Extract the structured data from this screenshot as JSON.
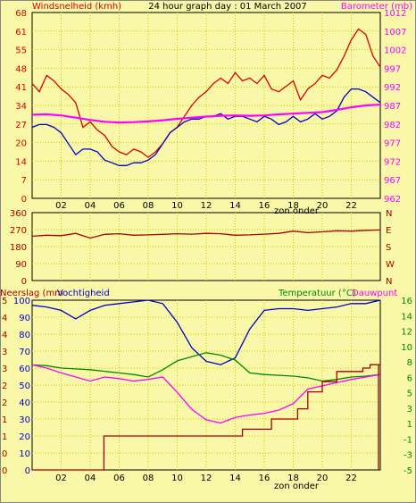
{
  "header": {
    "title": "24 hour graph day : 01 March 2007",
    "wind_label": "Windsnelheid (kmh)",
    "baro_label": "Barometer (mb)"
  },
  "colors": {
    "background": "#f8f8a8",
    "wind": "#dd0000",
    "gust": "#0000cc",
    "barometer": "#ff00ff",
    "humidity": "#0000cc",
    "temperature": "#008800",
    "dewpoint": "#ff00ff",
    "rain": "#aa0000",
    "direction": "#aa0000",
    "grid": "#cccc00"
  },
  "chart_data": [
    {
      "type": "line",
      "title": "24 hour graph day : 01 March 2007",
      "ylabel_left": "Windsnelheid (kmh)",
      "ylabel_right": "Barometer (mb)",
      "x_ticks": [
        "02",
        "04",
        "06",
        "08",
        "10",
        "12",
        "14",
        "16",
        "18",
        "20",
        "22"
      ],
      "x_annotation": "zon onder",
      "y_left_ticks": [
        "0",
        "7",
        "14",
        "20",
        "27",
        "34",
        "41",
        "48",
        "55",
        "61",
        "68"
      ],
      "y_right_ticks": [
        "962",
        "967",
        "972",
        "977",
        "982",
        "987",
        "992",
        "997",
        "1002",
        "1007",
        "1012"
      ],
      "ylim_left": [
        0,
        68
      ],
      "ylim_right": [
        962,
        1012
      ],
      "grid": true,
      "series": [
        {
          "axis": "left",
          "color": "#dd0000",
          "x": [
            0,
            0.5,
            1,
            1.5,
            2,
            2.5,
            3,
            3.5,
            4,
            4.5,
            5,
            5.5,
            6,
            6.5,
            7,
            7.5,
            8,
            8.5,
            9,
            9.5,
            10,
            10.5,
            11,
            11.5,
            12,
            12.5,
            13,
            13.5,
            14,
            14.5,
            15,
            15.5,
            16,
            16.5,
            17,
            17.5,
            18,
            18.5,
            19,
            19.5,
            20,
            20.5,
            21,
            21.5,
            22,
            22.5,
            23,
            23.5,
            24
          ],
          "values": [
            42,
            39,
            45,
            43,
            40,
            38,
            35,
            26,
            28,
            25,
            23,
            19,
            17,
            16,
            18,
            17,
            15,
            17,
            20,
            24,
            26,
            30,
            34,
            37,
            39,
            42,
            44,
            42,
            46,
            43,
            44,
            42,
            45,
            40,
            39,
            41,
            43,
            36,
            40,
            42,
            45,
            44,
            47,
            52,
            58,
            62,
            60,
            52,
            48
          ]
        },
        {
          "axis": "left",
          "color": "#0000cc",
          "x": [
            0,
            0.5,
            1,
            1.5,
            2,
            2.5,
            3,
            3.5,
            4,
            4.5,
            5,
            5.5,
            6,
            6.5,
            7,
            7.5,
            8,
            8.5,
            9,
            9.5,
            10,
            10.5,
            11,
            11.5,
            12,
            12.5,
            13,
            13.5,
            14,
            14.5,
            15,
            15.5,
            16,
            16.5,
            17,
            17.5,
            18,
            18.5,
            19,
            19.5,
            20,
            20.5,
            21,
            21.5,
            22,
            22.5,
            23,
            23.5,
            24
          ],
          "values": [
            26,
            27,
            27,
            26,
            24,
            20,
            16,
            18,
            18,
            17,
            14,
            13,
            12,
            12,
            13,
            13,
            14,
            16,
            20,
            24,
            26,
            28,
            29,
            29,
            30,
            30,
            31,
            29,
            30,
            30,
            29,
            28,
            30,
            29,
            27,
            28,
            30,
            28,
            29,
            31,
            29,
            30,
            32,
            37,
            40,
            40,
            39,
            37,
            35
          ]
        },
        {
          "axis": "right",
          "color": "#ff00ff",
          "x": [
            0,
            1,
            2,
            3,
            4,
            5,
            6,
            7,
            8,
            9,
            10,
            11,
            12,
            13,
            14,
            15,
            16,
            17,
            18,
            19,
            20,
            21,
            22,
            23,
            24
          ],
          "values": [
            984.5,
            984.6,
            984.3,
            983.7,
            983.1,
            982.6,
            982.4,
            982.5,
            982.7,
            983.0,
            983.4,
            983.7,
            984.0,
            984.2,
            984.3,
            984.2,
            984.3,
            984.6,
            984.8,
            985.0,
            985.2,
            985.8,
            986.5,
            987.0,
            987.2
          ]
        }
      ]
    },
    {
      "type": "line",
      "title": "",
      "y_left_ticks": [
        "0",
        "90",
        "180",
        "270",
        "360"
      ],
      "y_right_ticks": [
        "N",
        "W",
        "S",
        "E",
        "N"
      ],
      "ylim": [
        0,
        360
      ],
      "x_ticks": [],
      "grid": true,
      "series": [
        {
          "color": "#aa0000",
          "x": [
            0,
            1,
            2,
            3,
            4,
            5,
            6,
            7,
            8,
            9,
            10,
            11,
            12,
            13,
            14,
            15,
            16,
            17,
            18,
            19,
            20,
            21,
            22,
            23,
            24
          ],
          "values": [
            235,
            240,
            238,
            250,
            225,
            245,
            248,
            240,
            242,
            245,
            248,
            246,
            250,
            248,
            240,
            242,
            246,
            250,
            262,
            254,
            258,
            264,
            262,
            266,
            268
          ]
        }
      ]
    },
    {
      "type": "line",
      "title": "",
      "ylabel_left_1": "Neerslag (mm",
      "ylabel_left_2": "Vochtigheid",
      "ylabel_right": "Temperatuur (°C)",
      "ylabel_right_2": "Dauwpunt",
      "x_ticks": [
        "02",
        "04",
        "06",
        "08",
        "10",
        "12",
        "14",
        "16",
        "18",
        "20",
        "22"
      ],
      "x_annotation": "zon onder",
      "y_left_ticks_rain": [
        "0",
        "0",
        "1",
        "1",
        "2",
        "2",
        "3",
        "3",
        "4",
        "4",
        "5"
      ],
      "y_left_ticks_hum": [
        "0",
        "10",
        "20",
        "30",
        "40",
        "50",
        "60",
        "70",
        "80",
        "90",
        "100"
      ],
      "y_right_ticks": [
        "-5",
        "-3",
        "-1",
        "1",
        "3",
        "5",
        "6",
        "8",
        "10",
        "12",
        "14",
        "16"
      ],
      "ylim_humidity": [
        0,
        100
      ],
      "ylim_temperature": [
        -5,
        16
      ],
      "ylim_rain": [
        0,
        5
      ],
      "grid": true,
      "series": [
        {
          "axis": "humidity",
          "color": "#0000cc",
          "x": [
            0,
            1,
            2,
            3,
            4,
            5,
            6,
            7,
            8,
            9,
            10,
            11,
            12,
            13,
            14,
            15,
            16,
            17,
            18,
            19,
            20,
            21,
            22,
            23,
            24
          ],
          "values": [
            97,
            96,
            94,
            89,
            94,
            97,
            98,
            99,
            100,
            98,
            87,
            72,
            64,
            62,
            66,
            83,
            94,
            95,
            95,
            94,
            95,
            96,
            98,
            98,
            100
          ]
        },
        {
          "axis": "temperature",
          "color": "#008800",
          "x": [
            0,
            1,
            2,
            3,
            4,
            5,
            6,
            7,
            8,
            9,
            10,
            11,
            12,
            13,
            14,
            15,
            16,
            17,
            18,
            19,
            20,
            21,
            22,
            23,
            24
          ],
          "values": [
            8.0,
            7.9,
            7.6,
            7.5,
            7.4,
            7.2,
            7.0,
            6.8,
            6.5,
            7.4,
            8.5,
            9.0,
            9.5,
            9.2,
            8.6,
            7.0,
            6.8,
            6.7,
            6.6,
            6.4,
            6.0,
            6.2,
            6.5,
            6.6,
            6.8
          ]
        },
        {
          "axis": "temperature",
          "color": "#ff00ff",
          "x": [
            0,
            1,
            2,
            3,
            4,
            5,
            6,
            7,
            8,
            9,
            10,
            11,
            12,
            13,
            14,
            15,
            16,
            17,
            18,
            19,
            20,
            21,
            22,
            23,
            24
          ],
          "values": [
            8.0,
            7.6,
            7.0,
            6.5,
            6.0,
            6.5,
            6.3,
            6.0,
            6.2,
            6.5,
            4.6,
            2.5,
            1.2,
            0.8,
            1.5,
            1.8,
            2.0,
            2.4,
            3.2,
            5.0,
            5.4,
            5.8,
            6.2,
            6.5,
            6.8
          ]
        },
        {
          "axis": "rain",
          "color": "#aa0000",
          "step": true,
          "x": [
            0,
            4.9,
            4.95,
            14.0,
            14.5,
            16.5,
            18.3,
            19.0,
            20.0,
            21.0,
            22.8,
            23.3,
            24
          ],
          "values": [
            0,
            0,
            1.0,
            1.0,
            1.2,
            1.5,
            1.8,
            2.3,
            2.6,
            2.9,
            3.0,
            3.1,
            3.1
          ]
        }
      ]
    }
  ]
}
